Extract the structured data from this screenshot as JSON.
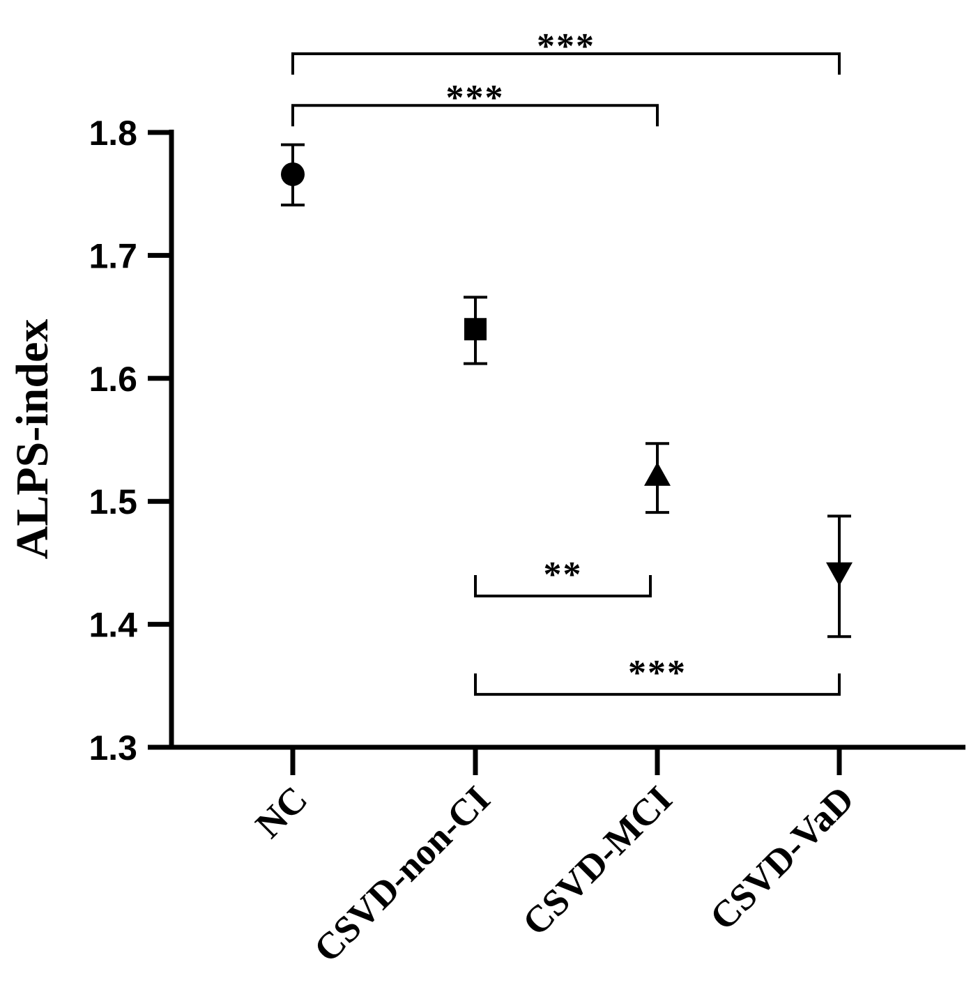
{
  "chart_data": {
    "type": "scatter",
    "title": "",
    "xlabel": "",
    "ylabel": "ALPS-index",
    "ylim": [
      1.3,
      1.8
    ],
    "yticks": [
      "1.3",
      "1.4",
      "1.5",
      "1.6",
      "1.7",
      "1.8"
    ],
    "categories": [
      "NC",
      "CSVD-non-CI",
      "CSVD-MCI",
      "CSVD-VaD"
    ],
    "points": [
      {
        "category": "NC",
        "mean": 1.766,
        "lower": 1.741,
        "upper": 1.79,
        "marker": "circle"
      },
      {
        "category": "CSVD-non-CI",
        "mean": 1.64,
        "lower": 1.612,
        "upper": 1.666,
        "marker": "square"
      },
      {
        "category": "CSVD-MCI",
        "mean": 1.52,
        "lower": 1.491,
        "upper": 1.547,
        "marker": "triangle-up"
      },
      {
        "category": "CSVD-VaD",
        "mean": 1.443,
        "lower": 1.39,
        "upper": 1.488,
        "marker": "triangle-down"
      }
    ],
    "significance": [
      {
        "from": "NC",
        "to": "CSVD-VaD",
        "label": "***",
        "level": 1.864,
        "direction": "down"
      },
      {
        "from": "NC",
        "to": "CSVD-MCI",
        "label": "***",
        "level": 1.822,
        "direction": "down"
      },
      {
        "from": "CSVD-non-CI",
        "to": "CSVD-MCI",
        "label": "**",
        "level": 1.423,
        "direction": "up"
      },
      {
        "from": "CSVD-non-CI",
        "to": "CSVD-VaD",
        "label": "***",
        "level": 1.343,
        "direction": "up"
      }
    ],
    "grid": false,
    "legend": "none",
    "color": "#000000"
  }
}
